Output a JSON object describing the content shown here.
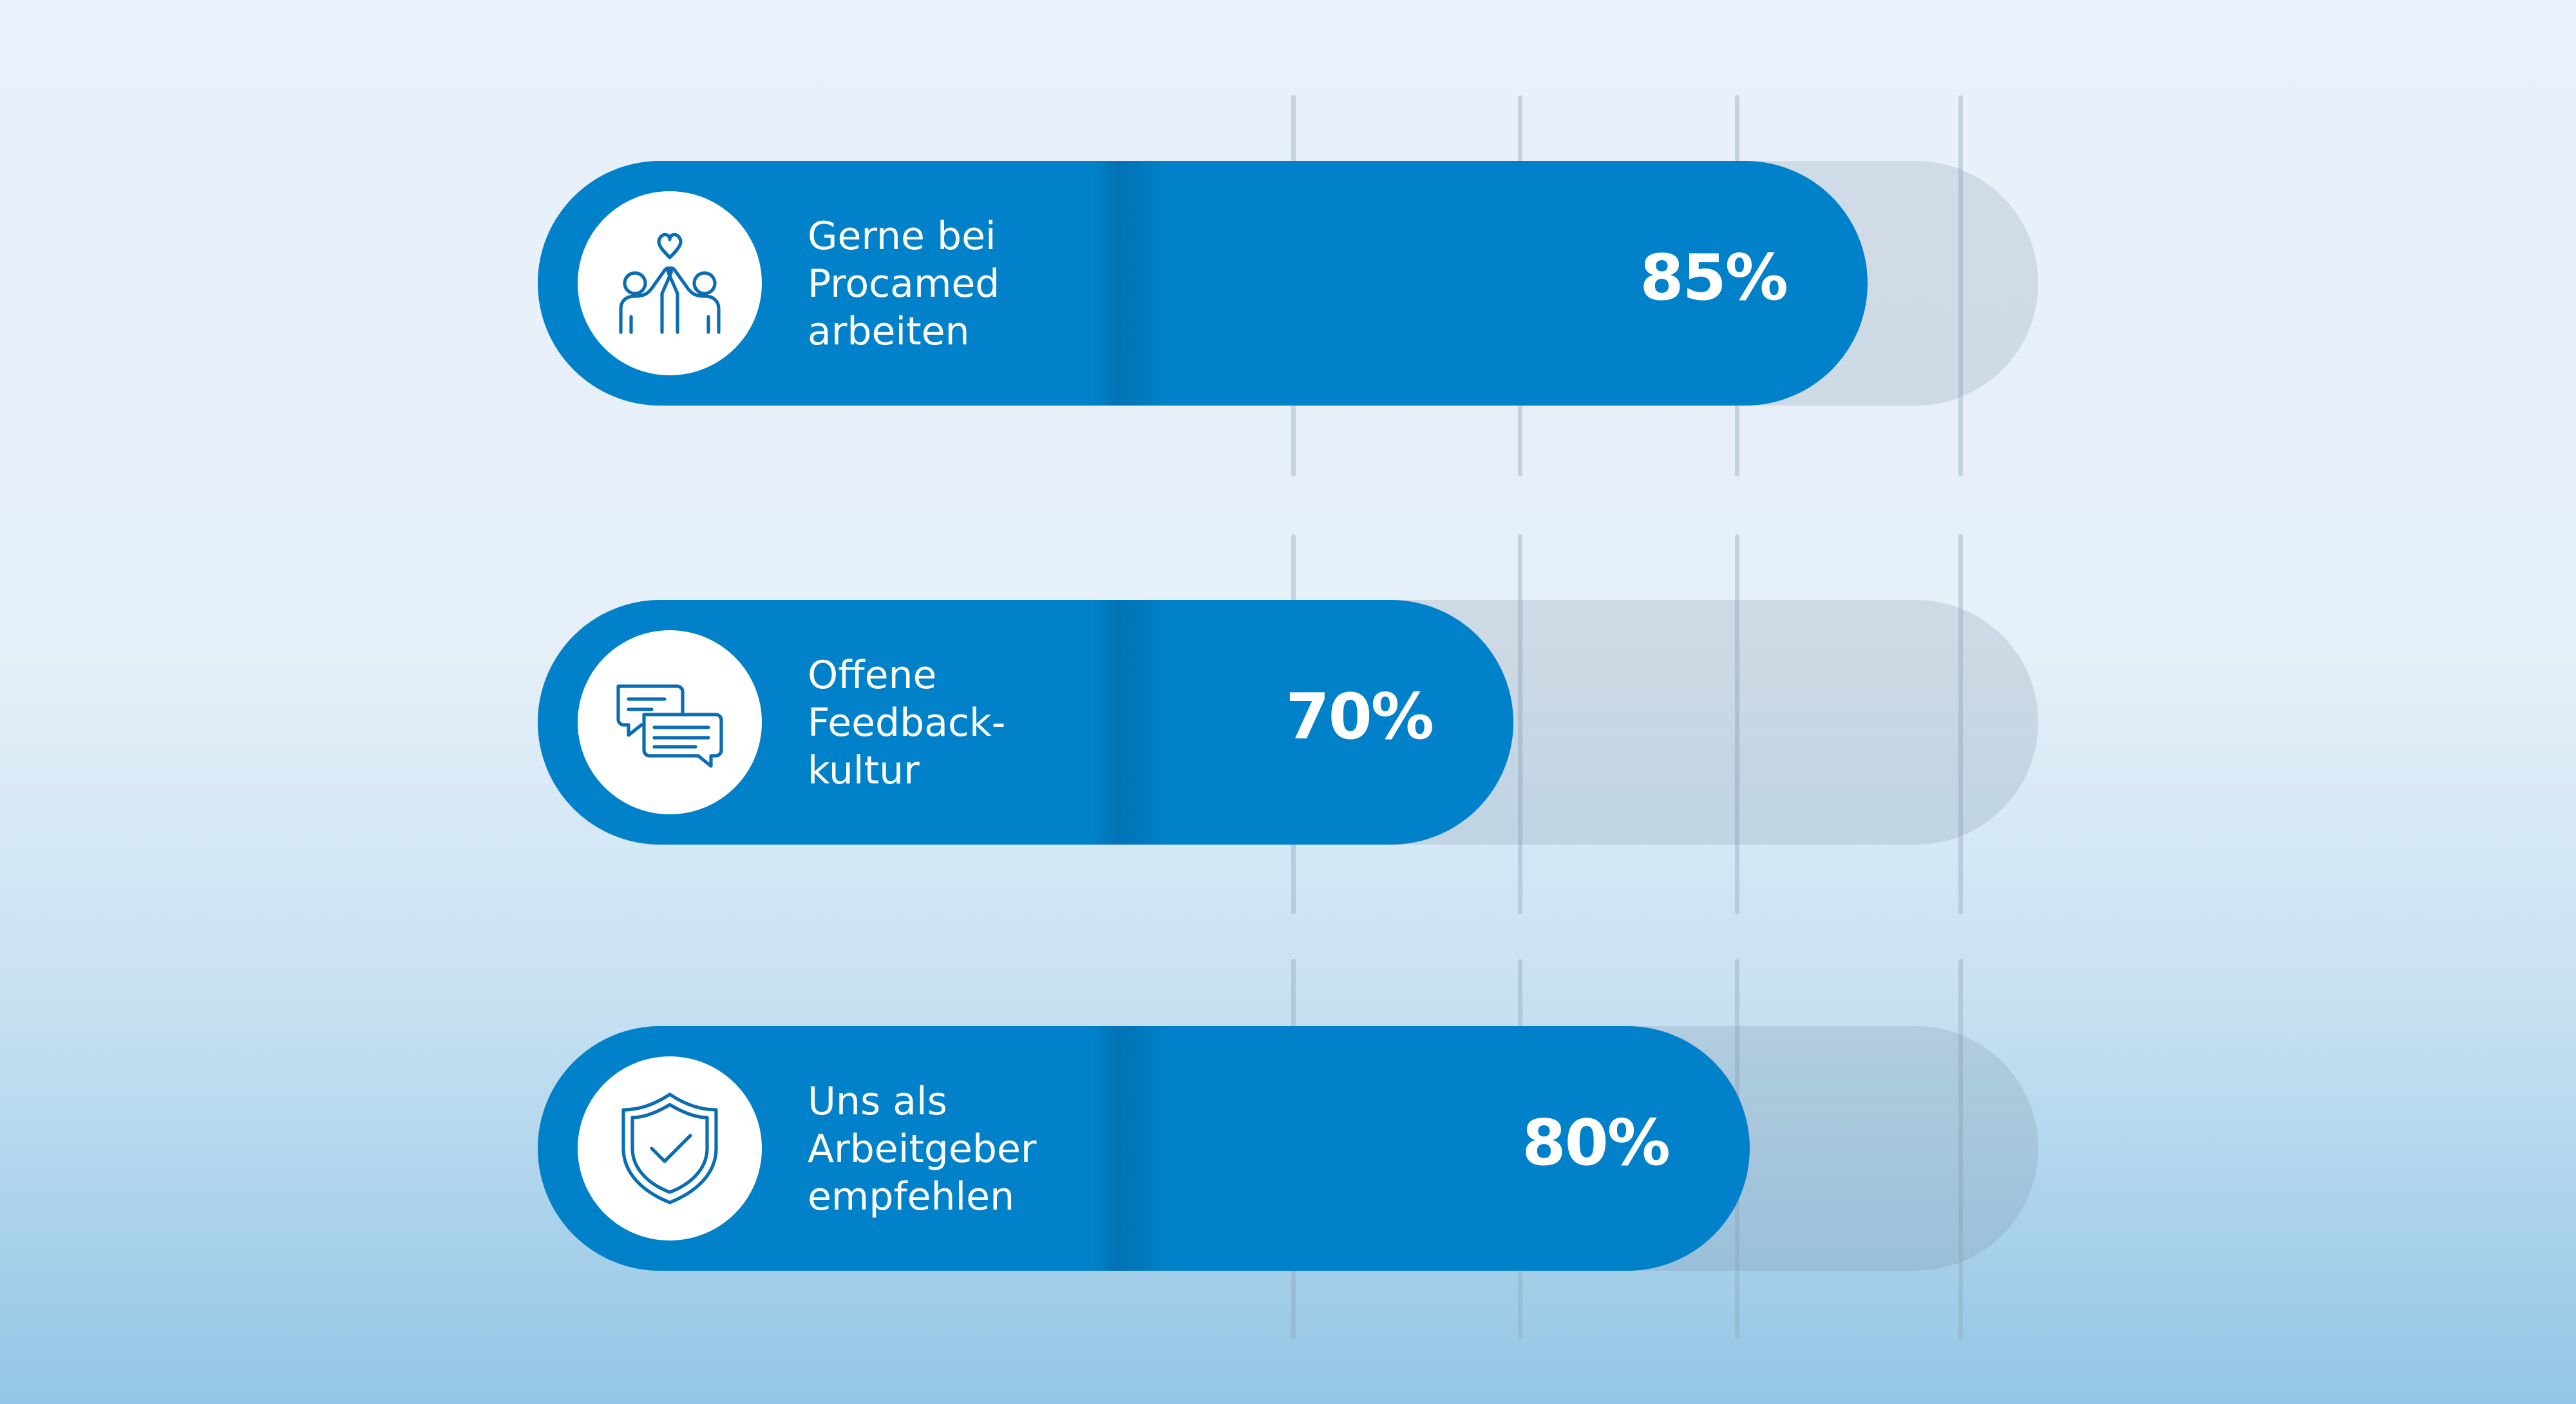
{
  "colors": {
    "accent": "#0081c9",
    "track": "#c7d6e2",
    "gridline": "#a9bccd",
    "background_top": "#e9f1fa",
    "background_bottom": "#93c6e6"
  },
  "chart_data": {
    "type": "bar",
    "orientation": "horizontal",
    "max": 100,
    "value_suffix": "%",
    "grid": true,
    "categories": [
      [
        "Gerne bei",
        "Procamed",
        "arbeiten"
      ],
      [
        "Offene",
        "Feedback-",
        "kultur"
      ],
      [
        "Uns als",
        "Arbeitgeber",
        "empfehlen"
      ]
    ],
    "values": [
      85,
      70,
      80
    ],
    "value_labels": [
      "85%",
      "70%",
      "80%"
    ],
    "icons": [
      "high-five-heart-icon",
      "chat-bubbles-icon",
      "shield-check-icon"
    ]
  }
}
